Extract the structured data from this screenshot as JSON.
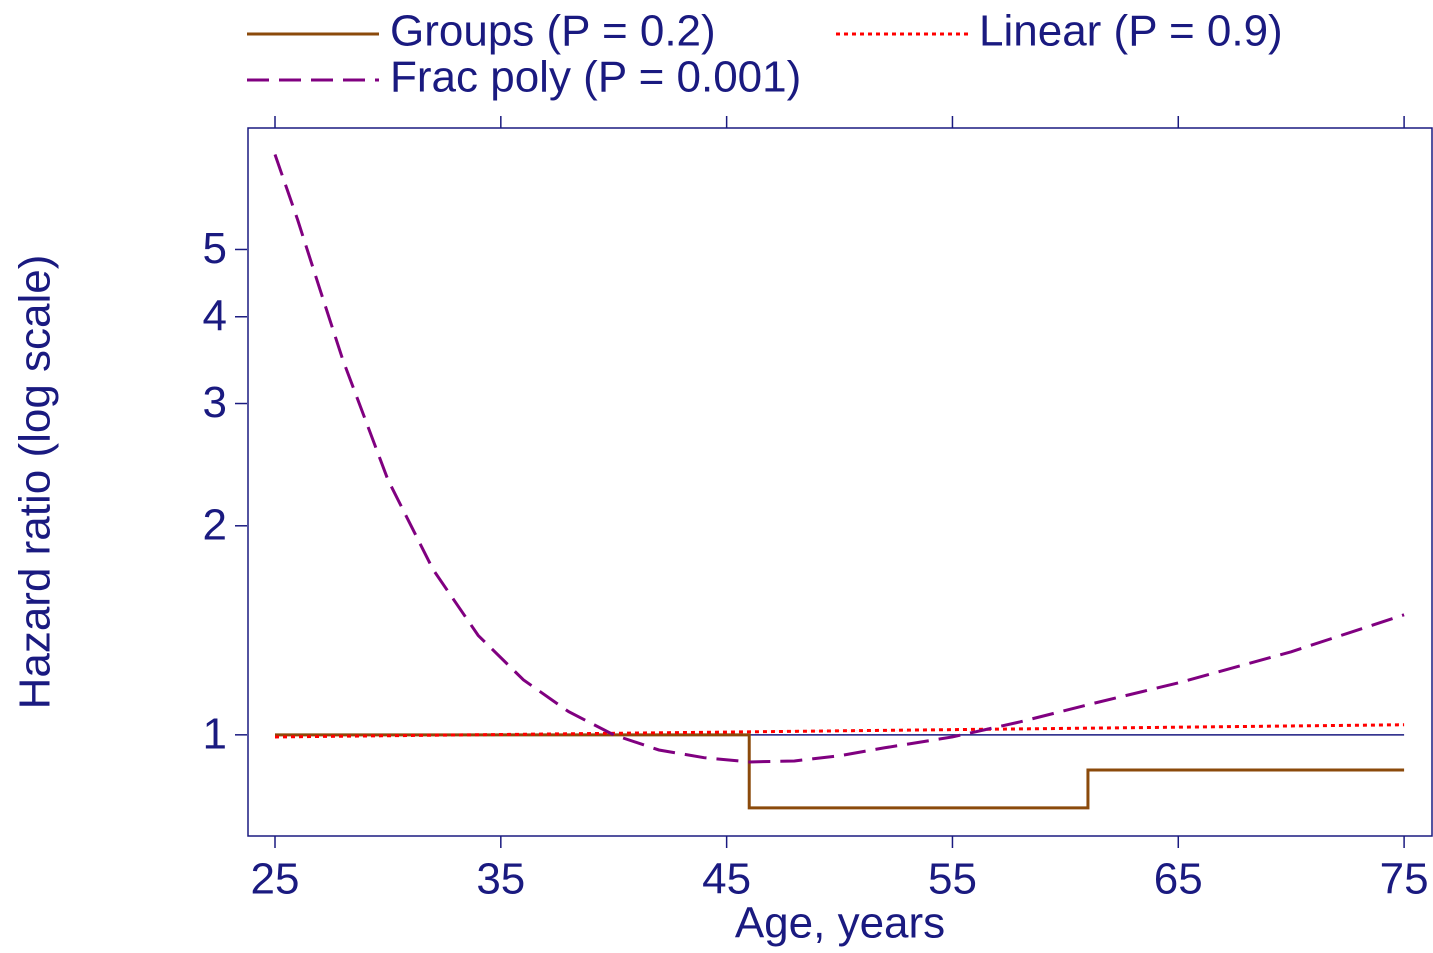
{
  "chart_data": {
    "type": "line",
    "xlabel": "Age, years",
    "ylabel": "Hazard ratio (log scale)",
    "xlim": [
      23.76,
      76.28
    ],
    "ylim": [
      0.715,
      7.48
    ],
    "log_y": true,
    "xticks": [
      25,
      35,
      45,
      55,
      65,
      75
    ],
    "yticks": [
      1,
      2,
      3,
      4,
      5
    ],
    "hline": 1,
    "series": [
      {
        "name": "Groups (P = 0.2)",
        "color": "#8b4a0b",
        "dash": "solid",
        "x": [
          25,
          46,
          46,
          61,
          61,
          75
        ],
        "values": [
          1,
          1,
          0.785,
          0.785,
          0.89,
          0.89
        ]
      },
      {
        "name": "Linear (P = 0.9)",
        "color": "#ff0000",
        "dash": "dotted",
        "x": [
          25,
          75
        ],
        "values": [
          0.993,
          1.034
        ]
      },
      {
        "name": "Frac poly (P = 0.001)",
        "color": "#800080",
        "dash": "dashed",
        "x": [
          25,
          26,
          27,
          28,
          30,
          32,
          34,
          36,
          38,
          40,
          42,
          44,
          46,
          48,
          50,
          52,
          55,
          58,
          61,
          65,
          70,
          75
        ],
        "values": [
          6.85,
          5.52,
          4.37,
          3.47,
          2.33,
          1.73,
          1.39,
          1.2,
          1.08,
          1.0,
          0.951,
          0.927,
          0.914,
          0.917,
          0.933,
          0.958,
          0.993,
          1.044,
          1.105,
          1.188,
          1.317,
          1.489
        ]
      }
    ]
  }
}
